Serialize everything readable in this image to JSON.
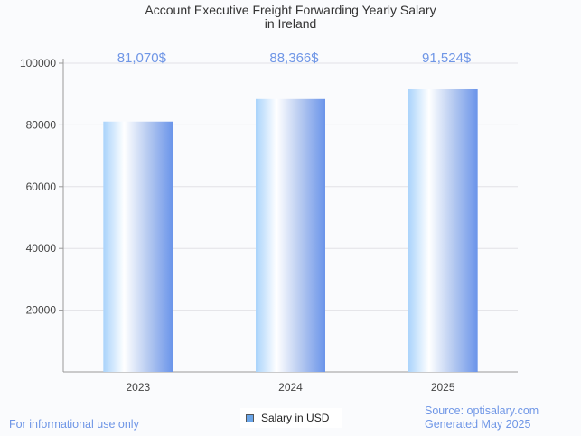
{
  "chart_data": {
    "type": "bar",
    "title_line1": "Account Executive Freight Forwarding Yearly Salary",
    "title_line2": "in Ireland",
    "categories": [
      "2023",
      "2024",
      "2025"
    ],
    "values": [
      81070,
      88366,
      91524
    ],
    "data_labels": [
      "81,070$",
      "88,366$",
      "91,524$"
    ],
    "ylim": [
      0,
      100000
    ],
    "yticks": [
      20000,
      40000,
      60000,
      80000,
      100000
    ],
    "ytick_labels": [
      "20000",
      "40000",
      "60000",
      "80000",
      "100000"
    ],
    "grid": true,
    "legend": {
      "label": "Salary in USD",
      "placement": "bottom-center",
      "color": "#6aa5e8"
    },
    "label_color": "#6f96e6"
  },
  "footer": {
    "disclaimer": "For informational use only",
    "source": "Source: optisalary.com",
    "generated": "Generated May 2025"
  }
}
